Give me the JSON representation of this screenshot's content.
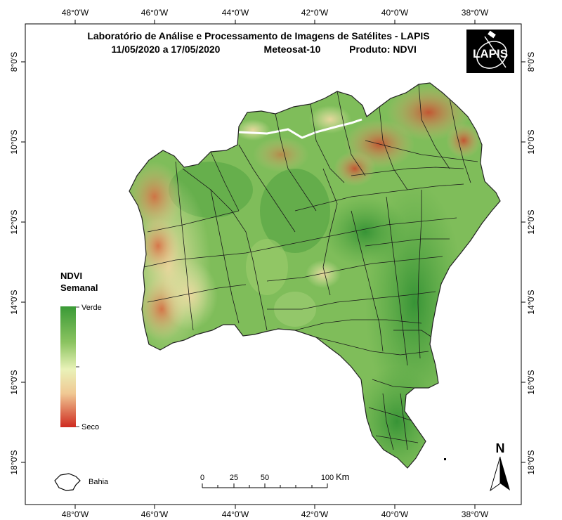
{
  "title": {
    "line1": "Laboratório de Análise e Processamento de Imagens de Satélites - LAPIS",
    "date_range": "11/05/2020  a  17/05/2020",
    "satellite": "Meteosat-10",
    "product": "Produto: NDVI"
  },
  "logo": {
    "text": "LAPIS",
    "bg": "#000000"
  },
  "axes": {
    "top_ticks": [
      "48°0'W",
      "46°0'W",
      "44°0'W",
      "42°0'W",
      "40°0'W",
      "38°0'W"
    ],
    "bottom_ticks": [
      "48°0'W",
      "46°0'W",
      "44°0'W",
      "42°0'W",
      "40°0'W",
      "38°0'W"
    ],
    "left_ticks": [
      "8°0'S",
      "10°0'S",
      "12°0'S",
      "14°0'S",
      "16°0'S",
      "18°0'S"
    ],
    "right_ticks": [
      "8°0'S",
      "10°0'S",
      "12°0'S",
      "14°0'S",
      "16°0'S",
      "18°0'S"
    ]
  },
  "legend": {
    "title_line1": "NDVI",
    "title_line2": "Semanal",
    "high_label": "Verde",
    "low_label": "Seco",
    "colors": [
      "#3a9a36",
      "#8cc461",
      "#e6f0b0",
      "#f3d59a",
      "#cf3a2a"
    ]
  },
  "inset": {
    "label": "Bahia"
  },
  "scale_bar": {
    "ticks": [
      "0",
      "25",
      "50",
      "100"
    ],
    "unit": "Km"
  },
  "north_arrow": {
    "label": "N"
  }
}
